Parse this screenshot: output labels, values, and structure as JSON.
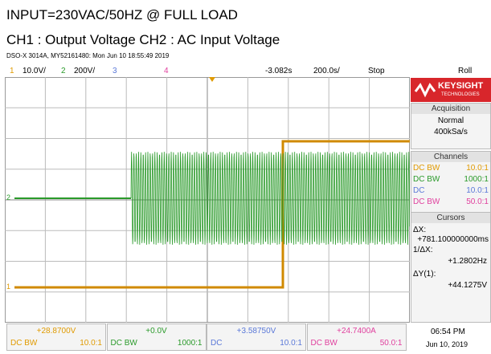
{
  "header": {
    "title": "INPUT=230VAC/50HZ @ FULL LOAD",
    "subtitle": "CH1 : Output Voltage CH2 : AC Input Voltage",
    "info": "DSO-X 3014A, MY52161480: Mon Jun 10 18:55:49 2019"
  },
  "status_bar": {
    "channels": [
      {
        "number": "1",
        "scale": "10.0V/"
      },
      {
        "number": "2",
        "scale": "200V/"
      },
      {
        "number": "3"
      },
      {
        "number": "4"
      }
    ],
    "time_offset": "-3.082s",
    "time_scale": "200.0s/",
    "run_state": "Stop",
    "mode": "Roll"
  },
  "side_panel": {
    "brand": "KEYSIGHT",
    "brand_sub": "TECHNOLOGIES",
    "acquisition": {
      "title": "Acquisition",
      "mode": "Normal",
      "rate": "400kSa/s"
    },
    "channels": {
      "title": "Channels",
      "rows": [
        {
          "coupling": "DC BW",
          "ratio": "10.0:1"
        },
        {
          "coupling": "DC BW",
          "ratio": "1000:1"
        },
        {
          "coupling": "DC",
          "ratio": "10.0:1"
        },
        {
          "coupling": "DC BW",
          "ratio": "50.0:1"
        }
      ]
    },
    "cursors": {
      "title": "Cursors",
      "items": [
        {
          "label": "ΔX:",
          "value": "+781.100000000ms"
        },
        {
          "label": "1/ΔX:",
          "value": "+1.2802Hz"
        },
        {
          "label": "ΔY(1):",
          "value": "+44.1275V"
        }
      ]
    }
  },
  "bottom_bar": {
    "channels": [
      {
        "value": "+28.8700V",
        "coupling": "DC BW",
        "ratio": "10.0:1"
      },
      {
        "value": "+0.0V",
        "coupling": "DC BW",
        "ratio": "1000:1"
      },
      {
        "value": "+3.58750V",
        "coupling": "DC",
        "ratio": "10.0:1"
      },
      {
        "value": "+24.7400A",
        "coupling": "DC BW",
        "ratio": "50.0:1"
      }
    ],
    "time": "06:54 PM",
    "date": "Jun 10, 2019"
  }
}
